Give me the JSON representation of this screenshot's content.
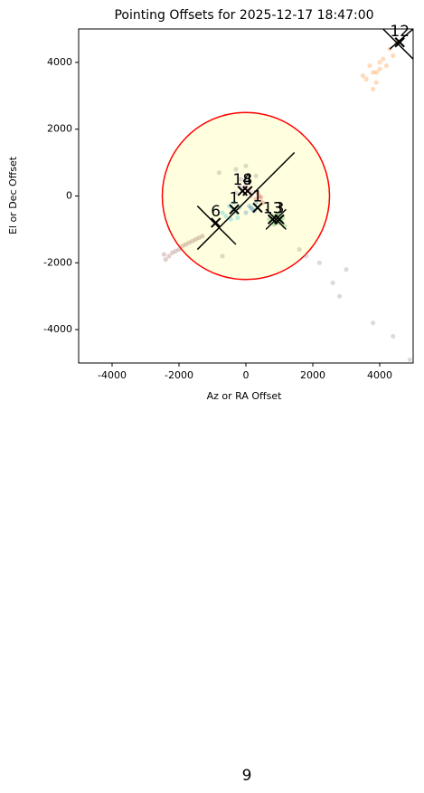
{
  "chart_data": {
    "type": "scatter",
    "title": "Pointing Offsets for 2025-12-17 18:47:00",
    "xlabel": "Az or RA Offset",
    "ylabel": "El or Dec Offset",
    "xlim": [
      -5000,
      5000
    ],
    "ylim": [
      -5000,
      5000
    ],
    "xticks": [
      -4000,
      -2000,
      0,
      2000,
      4000
    ],
    "yticks": [
      -4000,
      -2000,
      0,
      2000,
      4000
    ],
    "circle": {
      "x": 0,
      "y": 0,
      "r": 2500,
      "color": "#ff0000",
      "fill": "#ffffe0"
    },
    "series": [
      {
        "color": "#ff7f0e",
        "x": [
          3600,
          3800,
          4000,
          3700,
          4100,
          3900,
          4300,
          3800,
          4200,
          4500,
          3500,
          4000,
          3900,
          4400
        ],
        "y": [
          3500,
          3700,
          4000,
          3900,
          4100,
          3400,
          4400,
          3200,
          3900,
          4600,
          3600,
          3800,
          3700,
          4200
        ]
      },
      {
        "color": "#8c564b",
        "x": [
          -2400,
          -2300,
          -2200,
          -2000,
          -1900,
          -1700,
          -1600,
          -1500,
          -1400,
          -1300,
          -2450,
          -2100,
          -1800
        ],
        "y": [
          -1900,
          -1800,
          -1700,
          -1600,
          -1500,
          -1400,
          -1350,
          -1300,
          -1250,
          -1200,
          -1750,
          -1650,
          -1450
        ]
      },
      {
        "color": "#2ca02c",
        "x": [
          800,
          900,
          1000,
          1100,
          850,
          950,
          1050,
          700,
          1150,
          900,
          1000
        ],
        "y": [
          -600,
          -700,
          -800,
          -650,
          -850,
          -550,
          -750,
          -700,
          -900,
          -800,
          -600
        ]
      },
      {
        "color": "#17becf",
        "x": [
          -500,
          -400,
          -300,
          -200,
          -600,
          -350,
          -250,
          -450,
          -700
        ],
        "y": [
          -300,
          -400,
          -500,
          -350,
          -600,
          -200,
          -650,
          -700,
          -500
        ]
      },
      {
        "color": "#1f77b4",
        "x": [
          100,
          200,
          300,
          0,
          250,
          150
        ],
        "y": [
          -300,
          -400,
          -200,
          -500,
          -450,
          -350
        ]
      },
      {
        "color": "#d62728",
        "x": [
          300,
          400,
          500,
          350,
          450
        ],
        "y": [
          -100,
          0,
          -200,
          100,
          -50
        ]
      },
      {
        "color": "#9467bd",
        "x": [
          -200,
          -100,
          0,
          -300,
          -150
        ],
        "y": [
          300,
          200,
          400,
          100,
          500
        ]
      },
      {
        "color": "#e377c2",
        "x": [
          100,
          200,
          0,
          150
        ],
        "y": [
          200,
          100,
          300,
          0
        ]
      },
      {
        "color": "#7f7f7f",
        "x": [
          2600,
          2800,
          3000,
          3800,
          4400,
          4900,
          1800,
          1600,
          -800,
          0,
          -300,
          2200,
          -700,
          300
        ],
        "y": [
          -2600,
          -3000,
          -2200,
          -3800,
          -4200,
          -4900,
          -1800,
          -1600,
          700,
          900,
          800,
          -2000,
          -1800,
          600
        ]
      }
    ],
    "segments": [
      {
        "x": [
          -1450,
          1450
        ],
        "y": [
          -1600,
          1300
        ]
      },
      {
        "x": [
          -1450,
          -300
        ],
        "y": [
          -300,
          -1450
        ]
      },
      {
        "x": [
          4100,
          5000
        ],
        "y": [
          5000,
          4100
        ]
      },
      {
        "x": [
          4300,
          5000
        ],
        "y": [
          4400,
          5000
        ]
      },
      {
        "x": [
          600,
          1200
        ],
        "y": [
          -400,
          -1000
        ]
      },
      {
        "x": [
          600,
          1200
        ],
        "y": [
          -1000,
          -400
        ]
      }
    ],
    "markers": [
      {
        "label": "12",
        "x": 4600,
        "y": 4600
      },
      {
        "label": "6",
        "x": -900,
        "y": -800
      },
      {
        "label": "13",
        "x": 800,
        "y": -700
      },
      {
        "label": "3",
        "x": 1000,
        "y": -700
      },
      {
        "label": "14",
        "x": -100,
        "y": 150
      },
      {
        "label": "8",
        "x": 50,
        "y": 150
      },
      {
        "label": "1",
        "x": -350,
        "y": -400
      },
      {
        "label": "1",
        "x": 350,
        "y": -350
      }
    ]
  },
  "page_number": "9"
}
